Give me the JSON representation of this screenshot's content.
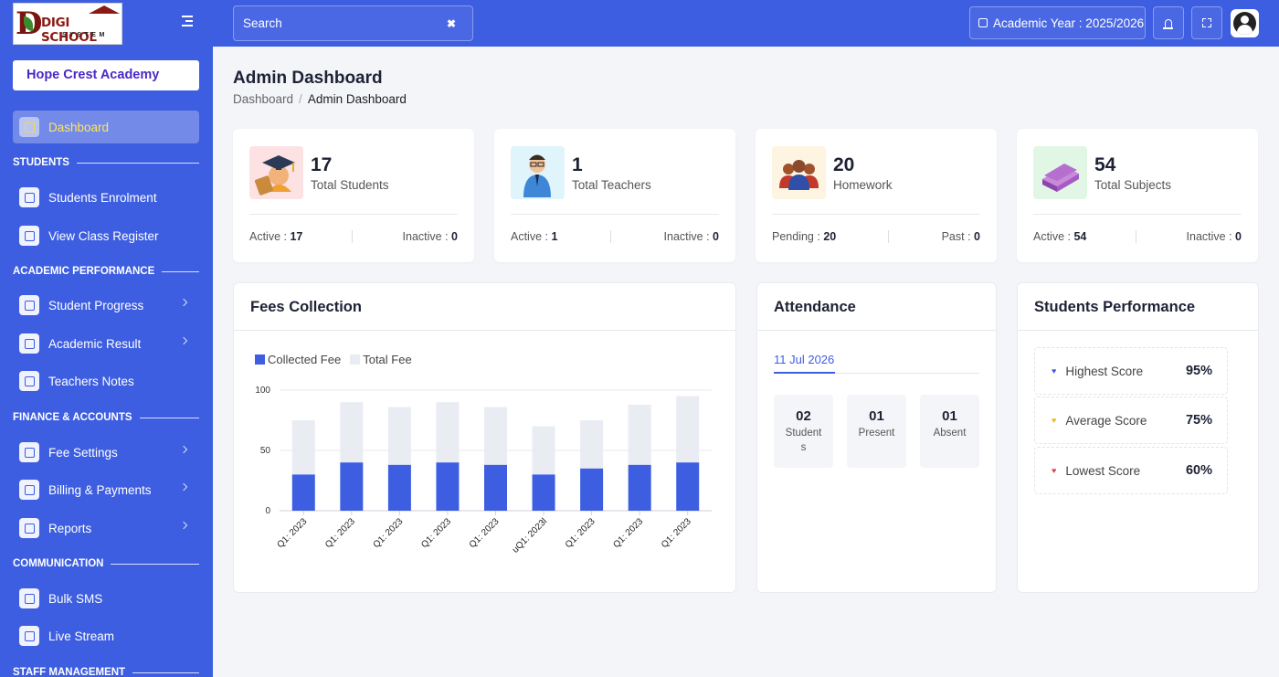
{
  "brand": {
    "logo_letter": "D",
    "logo_text": "DIGI SCHOOL",
    "logo_sub": "SYSTEM"
  },
  "school_name": "Hope Crest Academy",
  "sidebar": {
    "dashboard": "Dashboard",
    "sections": [
      {
        "title": "STUDENTS",
        "items": [
          "Students Enrolment",
          "View Class Register"
        ]
      },
      {
        "title": "ACADEMIC PERFORMANCE",
        "items": [
          "Student Progress",
          "Academic Result",
          "Teachers Notes"
        ]
      },
      {
        "title": "FINANCE & ACCOUNTS",
        "items": [
          "Fee Settings",
          "Billing & Payments",
          "Reports"
        ]
      },
      {
        "title": "COMMUNICATION",
        "items": [
          "Bulk SMS",
          "Live Stream"
        ]
      },
      {
        "title": "STAFF MANAGEMENT",
        "items": []
      }
    ]
  },
  "topbar": {
    "search_placeholder": "Search",
    "academic_year": "Academic Year : 2025/2026"
  },
  "page": {
    "title": "Admin Dashboard",
    "breadcrumb": [
      "Dashboard",
      "Admin Dashboard"
    ]
  },
  "stats": [
    {
      "value": "17",
      "label": "Total Students",
      "left_label": "Active :",
      "left_value": "17",
      "right_label": "Inactive :",
      "right_value": "0",
      "bg": "#fde2e4"
    },
    {
      "value": "1",
      "label": "Total Teachers",
      "left_label": "Active :",
      "left_value": "1",
      "right_label": "Inactive :",
      "right_value": "0",
      "bg": "#dff4fb"
    },
    {
      "value": "20",
      "label": "Homework",
      "left_label": "Pending :",
      "left_value": "20",
      "right_label": "Past :",
      "right_value": "0",
      "bg": "#fdf4e1"
    },
    {
      "value": "54",
      "label": "Total Subjects",
      "left_label": "Active :",
      "left_value": "54",
      "right_label": "Inactive :",
      "right_value": "0",
      "bg": "#e2f6e6"
    }
  ],
  "fees": {
    "title": "Fees Collection",
    "legend": [
      "Collected Fee",
      "Total Fee"
    ]
  },
  "chart_data": {
    "type": "bar",
    "stacked": true,
    "categories": [
      "Q1: 2023",
      "Q1: 2023",
      "Q1: 2023",
      "Q1: 2023",
      "Q1: 2023",
      "uQ1: 2023l",
      "Q1: 2023",
      "Q1: 2023",
      "Q1: 2023"
    ],
    "series": [
      {
        "name": "Collected Fee",
        "values": [
          30,
          40,
          38,
          40,
          38,
          30,
          35,
          38,
          40
        ],
        "color": "#3d5ee0"
      },
      {
        "name": "Total Fee",
        "values": [
          45,
          50,
          48,
          50,
          48,
          40,
          40,
          50,
          55
        ],
        "color": "#e9ecf3"
      }
    ],
    "yticks": [
      0,
      50,
      100
    ],
    "ylim": [
      0,
      100
    ],
    "legend_position": "top-left",
    "grid": true
  },
  "attendance": {
    "title": "Attendance",
    "date": "11 Jul 2026",
    "boxes": [
      {
        "value": "02",
        "label": "Students"
      },
      {
        "value": "01",
        "label": "Present"
      },
      {
        "value": "01",
        "label": "Absent"
      }
    ]
  },
  "performance": {
    "title": "Students Performance",
    "rows": [
      {
        "label": "Highest Score",
        "value": "95%",
        "color": "#3d5ee0"
      },
      {
        "label": "Average Score",
        "value": "75%",
        "color": "#e8b923"
      },
      {
        "label": "Lowest Score",
        "value": "60%",
        "color": "#e0405a"
      }
    ]
  }
}
